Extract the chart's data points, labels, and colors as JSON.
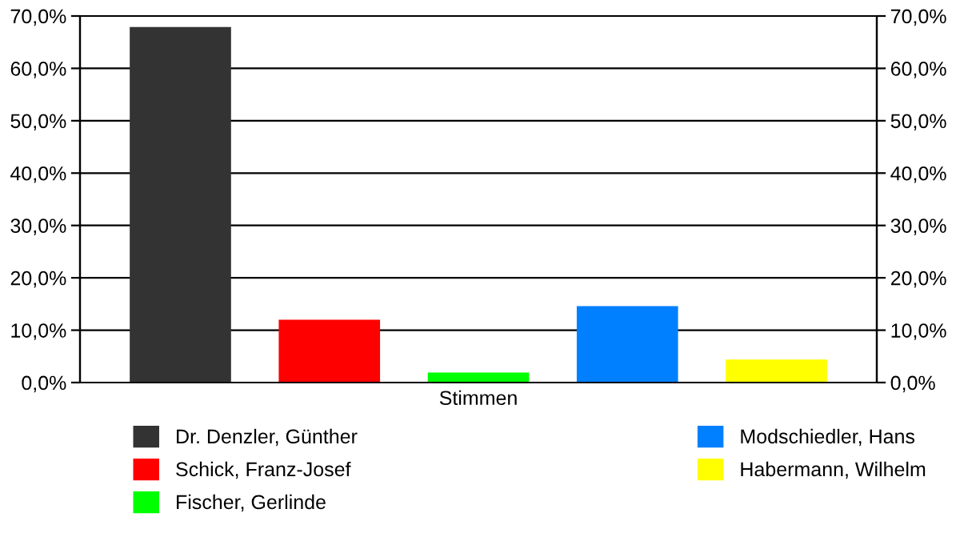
{
  "chart_data": {
    "type": "bar",
    "xlabel": "Stimmen",
    "categories": [
      null
    ],
    "series": [
      {
        "name": "Dr. Denzler, Günther",
        "color": "#333333",
        "values": [
          67.9
        ]
      },
      {
        "name": "Schick, Franz-Josef",
        "color": "#ff0000",
        "values": [
          12.0
        ]
      },
      {
        "name": "Fischer, Gerlinde",
        "color": "#00ff00",
        "values": [
          1.9
        ]
      },
      {
        "name": "Modschiedler, Hans",
        "color": "#0080ff",
        "values": [
          14.6
        ]
      },
      {
        "name": "Habermann, Wilhelm",
        "color": "#ffff00",
        "values": [
          4.4
        ]
      }
    ],
    "ylim": [
      0,
      70
    ],
    "yticks": [
      {
        "value": 0,
        "label": "0,0%"
      },
      {
        "value": 10,
        "label": "10,0%"
      },
      {
        "value": 20,
        "label": "20,0%"
      },
      {
        "value": 30,
        "label": "30,0%"
      },
      {
        "value": 40,
        "label": "40,0%"
      },
      {
        "value": 50,
        "label": "50,0%"
      },
      {
        "value": 60,
        "label": "60,0%"
      },
      {
        "value": 70,
        "label": "70,0%"
      }
    ],
    "y2lim": [
      0,
      70
    ],
    "y2ticks": [
      {
        "value": 0,
        "label": "0,0%"
      },
      {
        "value": 10,
        "label": "10,0%"
      },
      {
        "value": 20,
        "label": "20,0%"
      },
      {
        "value": 30,
        "label": "30,0%"
      },
      {
        "value": 40,
        "label": "40,0%"
      },
      {
        "value": 50,
        "label": "50,0%"
      },
      {
        "value": 60,
        "label": "60,0%"
      },
      {
        "value": 70,
        "label": "70,0%"
      }
    ],
    "grid": "y",
    "legend": "bottom"
  }
}
